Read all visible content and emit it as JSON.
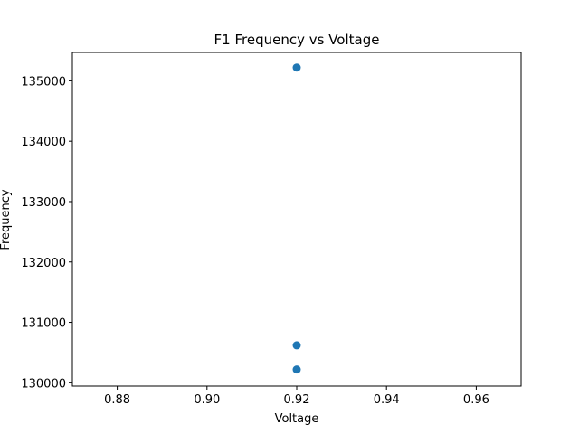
{
  "chart_data": {
    "type": "scatter",
    "title": "F1 Frequency vs Voltage",
    "xlabel": "Voltage",
    "ylabel": "Frequency",
    "xlim": [
      0.87,
      0.97
    ],
    "ylim": [
      129945,
      135470
    ],
    "xticks": [
      0.88,
      0.9,
      0.92,
      0.94,
      0.96
    ],
    "xtick_labels": [
      "0.88",
      "0.90",
      "0.92",
      "0.94",
      "0.96"
    ],
    "yticks": [
      130000,
      131000,
      132000,
      133000,
      134000,
      135000
    ],
    "ytick_labels": [
      "130000",
      "131000",
      "132000",
      "133000",
      "134000",
      "135000"
    ],
    "grid": false,
    "marker_color": "#1f77b4",
    "points": [
      {
        "x": 0.92,
        "y": 135220
      },
      {
        "x": 0.92,
        "y": 130620
      },
      {
        "x": 0.92,
        "y": 130220
      }
    ]
  }
}
